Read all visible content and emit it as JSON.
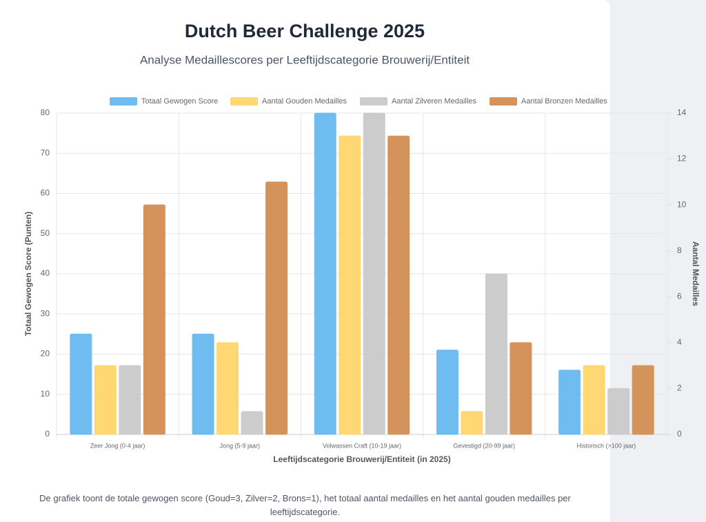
{
  "chart_data": {
    "type": "bar",
    "title": "Dutch Beer Challenge 2025",
    "subtitle": "Analyse Medaillescores per Leeftijdscategorie Brouwerij/Entiteit",
    "xlabel": "Leeftijdscategorie Brouwerij/Entiteit (in 2025)",
    "ylabel": "Totaal Gewogen Score (Punten)",
    "y2label": "Aantal Medailles",
    "categories": [
      "Zeer Jong (0-4 jaar)",
      "Jong (5-9 jaar)",
      "Volwassen Craft (10-19 jaar)",
      "Gevestigd (20-99 jaar)",
      "Historisch (>100 jaar)"
    ],
    "series": [
      {
        "name": "Totaal Gewogen Score",
        "color": "#6fbdf0",
        "axis": "y",
        "values": [
          25,
          25,
          80,
          21,
          16
        ]
      },
      {
        "name": "Aantal Gouden Medailles",
        "color": "#ffd773",
        "axis": "y2",
        "values": [
          3,
          4,
          13,
          1,
          3
        ]
      },
      {
        "name": "Aantal Zilveren Medailles",
        "color": "#cccccc",
        "axis": "y2",
        "values": [
          3,
          1,
          14,
          7,
          2
        ]
      },
      {
        "name": "Aantal Bronzen Medailles",
        "color": "#d4935a",
        "axis": "y2",
        "values": [
          10,
          11,
          13,
          4,
          3
        ]
      }
    ],
    "ylim": [
      0,
      80
    ],
    "yticks": [
      0,
      10,
      20,
      30,
      40,
      50,
      60,
      70,
      80
    ],
    "y2lim": [
      0,
      14
    ],
    "y2ticks": [
      0,
      2,
      4,
      6,
      8,
      10,
      12,
      14
    ],
    "grid": true,
    "legend": "top"
  },
  "caption": "De grafiek toont de totale gewogen score (Goud=3, Zilver=2, Brons=1), het totaal aantal medailles en het aantal gouden medailles per leeftijdscategorie."
}
